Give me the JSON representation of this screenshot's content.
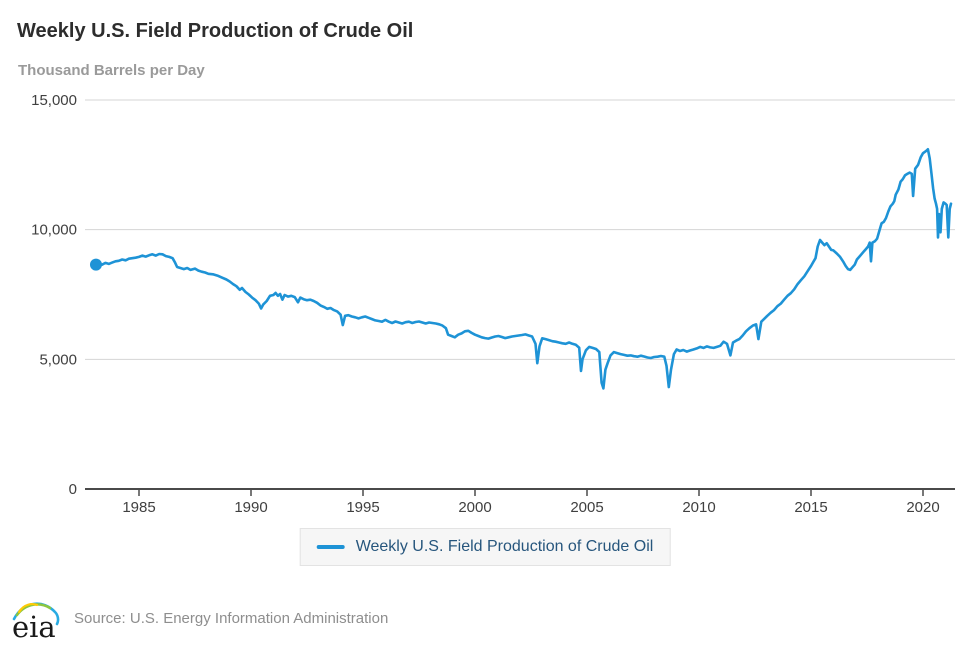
{
  "header": {
    "title": "Weekly U.S. Field Production of Crude Oil",
    "units_label": "Thousand Barrels per Day"
  },
  "legend": {
    "label": "Weekly U.S. Field Production of Crude Oil"
  },
  "footer": {
    "logo_text": "eia",
    "source": "Source: U.S. Energy Information Administration"
  },
  "colors": {
    "series": "#1e93d6",
    "gridline": "#d4d4d4",
    "axis": "#4a4a4a",
    "title": "#2d2d2d",
    "subtitle": "#9a9a9a",
    "tick_label": "#404040",
    "legend_text": "#27567d",
    "legend_bg": "#f6f6f6",
    "legend_border": "#e3e3e3",
    "source_text": "#8e8e8e"
  },
  "chart_data": {
    "type": "line",
    "title": "Weekly U.S. Field Production of Crude Oil",
    "xlabel": "",
    "ylabel": "Thousand Barrels per Day",
    "xlim": [
      1982.6,
      2021.6
    ],
    "ylim": [
      0,
      15000
    ],
    "grid": "horizontal",
    "legend_position": "bottom",
    "x_ticks": [
      1985,
      1990,
      1995,
      2000,
      2005,
      2010,
      2015,
      2020
    ],
    "y_ticks": [
      0,
      5000,
      10000,
      15000
    ],
    "y_tick_labels": [
      "0",
      "5,000",
      "10,000",
      "15,000"
    ],
    "series": [
      {
        "name": "Weekly U.S. Field Production of Crude Oil",
        "color": "#1e93d6",
        "marker_on_first_point": true,
        "points": [
          [
            1983.08,
            8650
          ],
          [
            1983.2,
            8700
          ],
          [
            1983.35,
            8650
          ],
          [
            1983.5,
            8720
          ],
          [
            1983.65,
            8680
          ],
          [
            1983.8,
            8730
          ],
          [
            1983.95,
            8780
          ],
          [
            1984.1,
            8800
          ],
          [
            1984.25,
            8850
          ],
          [
            1984.4,
            8820
          ],
          [
            1984.55,
            8880
          ],
          [
            1984.7,
            8900
          ],
          [
            1984.85,
            8920
          ],
          [
            1985.0,
            8950
          ],
          [
            1985.15,
            9000
          ],
          [
            1985.3,
            8960
          ],
          [
            1985.45,
            9010
          ],
          [
            1985.6,
            9050
          ],
          [
            1985.75,
            9000
          ],
          [
            1985.9,
            9060
          ],
          [
            1986.05,
            9050
          ],
          [
            1986.2,
            8980
          ],
          [
            1986.35,
            8950
          ],
          [
            1986.5,
            8900
          ],
          [
            1986.6,
            8750
          ],
          [
            1986.7,
            8560
          ],
          [
            1986.85,
            8520
          ],
          [
            1987.0,
            8480
          ],
          [
            1987.15,
            8520
          ],
          [
            1987.3,
            8450
          ],
          [
            1987.5,
            8500
          ],
          [
            1987.65,
            8420
          ],
          [
            1987.8,
            8380
          ],
          [
            1987.95,
            8350
          ],
          [
            1988.1,
            8300
          ],
          [
            1988.3,
            8280
          ],
          [
            1988.5,
            8230
          ],
          [
            1988.7,
            8150
          ],
          [
            1988.9,
            8080
          ],
          [
            1989.05,
            8000
          ],
          [
            1989.2,
            7900
          ],
          [
            1989.35,
            7820
          ],
          [
            1989.5,
            7680
          ],
          [
            1989.6,
            7750
          ],
          [
            1989.75,
            7600
          ],
          [
            1989.9,
            7500
          ],
          [
            1990.05,
            7380
          ],
          [
            1990.2,
            7280
          ],
          [
            1990.35,
            7150
          ],
          [
            1990.45,
            6960
          ],
          [
            1990.55,
            7120
          ],
          [
            1990.7,
            7250
          ],
          [
            1990.85,
            7450
          ],
          [
            1991.0,
            7480
          ],
          [
            1991.1,
            7560
          ],
          [
            1991.2,
            7450
          ],
          [
            1991.3,
            7520
          ],
          [
            1991.4,
            7300
          ],
          [
            1991.5,
            7480
          ],
          [
            1991.65,
            7420
          ],
          [
            1991.8,
            7450
          ],
          [
            1991.95,
            7400
          ],
          [
            1992.1,
            7200
          ],
          [
            1992.2,
            7380
          ],
          [
            1992.35,
            7320
          ],
          [
            1992.5,
            7280
          ],
          [
            1992.65,
            7300
          ],
          [
            1992.8,
            7250
          ],
          [
            1992.95,
            7180
          ],
          [
            1993.1,
            7080
          ],
          [
            1993.25,
            7020
          ],
          [
            1993.4,
            6950
          ],
          [
            1993.55,
            6980
          ],
          [
            1993.7,
            6900
          ],
          [
            1993.85,
            6850
          ],
          [
            1994.0,
            6720
          ],
          [
            1994.1,
            6320
          ],
          [
            1994.2,
            6680
          ],
          [
            1994.35,
            6700
          ],
          [
            1994.5,
            6650
          ],
          [
            1994.65,
            6620
          ],
          [
            1994.8,
            6580
          ],
          [
            1994.95,
            6620
          ],
          [
            1995.1,
            6650
          ],
          [
            1995.25,
            6600
          ],
          [
            1995.4,
            6550
          ],
          [
            1995.55,
            6500
          ],
          [
            1995.7,
            6480
          ],
          [
            1995.85,
            6450
          ],
          [
            1996.0,
            6520
          ],
          [
            1996.15,
            6450
          ],
          [
            1996.3,
            6400
          ],
          [
            1996.45,
            6460
          ],
          [
            1996.6,
            6420
          ],
          [
            1996.75,
            6380
          ],
          [
            1996.9,
            6430
          ],
          [
            1997.05,
            6450
          ],
          [
            1997.2,
            6400
          ],
          [
            1997.35,
            6440
          ],
          [
            1997.5,
            6460
          ],
          [
            1997.65,
            6420
          ],
          [
            1997.8,
            6380
          ],
          [
            1997.95,
            6420
          ],
          [
            1998.1,
            6400
          ],
          [
            1998.25,
            6380
          ],
          [
            1998.4,
            6350
          ],
          [
            1998.55,
            6300
          ],
          [
            1998.7,
            6200
          ],
          [
            1998.8,
            5950
          ],
          [
            1998.95,
            5900
          ],
          [
            1999.1,
            5850
          ],
          [
            1999.25,
            5950
          ],
          [
            1999.4,
            6000
          ],
          [
            1999.55,
            6080
          ],
          [
            1999.7,
            6100
          ],
          [
            1999.85,
            6020
          ],
          [
            2000.0,
            5950
          ],
          [
            2000.15,
            5900
          ],
          [
            2000.3,
            5850
          ],
          [
            2000.45,
            5820
          ],
          [
            2000.6,
            5800
          ],
          [
            2000.75,
            5840
          ],
          [
            2000.9,
            5880
          ],
          [
            2001.05,
            5900
          ],
          [
            2001.2,
            5860
          ],
          [
            2001.35,
            5820
          ],
          [
            2001.5,
            5850
          ],
          [
            2001.65,
            5880
          ],
          [
            2001.8,
            5900
          ],
          [
            2001.95,
            5920
          ],
          [
            2002.1,
            5940
          ],
          [
            2002.25,
            5960
          ],
          [
            2002.4,
            5920
          ],
          [
            2002.55,
            5880
          ],
          [
            2002.7,
            5600
          ],
          [
            2002.78,
            4850
          ],
          [
            2002.88,
            5500
          ],
          [
            2003.0,
            5810
          ],
          [
            2003.15,
            5780
          ],
          [
            2003.3,
            5740
          ],
          [
            2003.45,
            5700
          ],
          [
            2003.6,
            5680
          ],
          [
            2003.75,
            5650
          ],
          [
            2003.9,
            5620
          ],
          [
            2004.05,
            5600
          ],
          [
            2004.2,
            5650
          ],
          [
            2004.35,
            5600
          ],
          [
            2004.5,
            5560
          ],
          [
            2004.65,
            5450
          ],
          [
            2004.73,
            4550
          ],
          [
            2004.8,
            5000
          ],
          [
            2004.95,
            5350
          ],
          [
            2005.1,
            5480
          ],
          [
            2005.25,
            5440
          ],
          [
            2005.4,
            5400
          ],
          [
            2005.55,
            5280
          ],
          [
            2005.65,
            4100
          ],
          [
            2005.73,
            3880
          ],
          [
            2005.82,
            4600
          ],
          [
            2005.92,
            4850
          ],
          [
            2006.05,
            5150
          ],
          [
            2006.2,
            5280
          ],
          [
            2006.35,
            5240
          ],
          [
            2006.5,
            5200
          ],
          [
            2006.65,
            5170
          ],
          [
            2006.8,
            5140
          ],
          [
            2006.95,
            5150
          ],
          [
            2007.1,
            5120
          ],
          [
            2007.25,
            5100
          ],
          [
            2007.4,
            5140
          ],
          [
            2007.55,
            5110
          ],
          [
            2007.7,
            5070
          ],
          [
            2007.85,
            5050
          ],
          [
            2008.0,
            5090
          ],
          [
            2008.15,
            5100
          ],
          [
            2008.3,
            5130
          ],
          [
            2008.45,
            5100
          ],
          [
            2008.55,
            4750
          ],
          [
            2008.65,
            3930
          ],
          [
            2008.75,
            4600
          ],
          [
            2008.88,
            5200
          ],
          [
            2009.0,
            5380
          ],
          [
            2009.15,
            5320
          ],
          [
            2009.3,
            5360
          ],
          [
            2009.45,
            5300
          ],
          [
            2009.6,
            5340
          ],
          [
            2009.75,
            5380
          ],
          [
            2009.9,
            5420
          ],
          [
            2010.05,
            5480
          ],
          [
            2010.2,
            5440
          ],
          [
            2010.35,
            5500
          ],
          [
            2010.5,
            5460
          ],
          [
            2010.65,
            5440
          ],
          [
            2010.8,
            5480
          ],
          [
            2010.95,
            5520
          ],
          [
            2011.1,
            5680
          ],
          [
            2011.25,
            5600
          ],
          [
            2011.4,
            5150
          ],
          [
            2011.52,
            5650
          ],
          [
            2011.65,
            5720
          ],
          [
            2011.8,
            5780
          ],
          [
            2011.95,
            5920
          ],
          [
            2012.1,
            6080
          ],
          [
            2012.25,
            6200
          ],
          [
            2012.4,
            6300
          ],
          [
            2012.55,
            6350
          ],
          [
            2012.65,
            5780
          ],
          [
            2012.78,
            6450
          ],
          [
            2012.9,
            6550
          ],
          [
            2013.05,
            6680
          ],
          [
            2013.2,
            6800
          ],
          [
            2013.35,
            6900
          ],
          [
            2013.5,
            7050
          ],
          [
            2013.65,
            7150
          ],
          [
            2013.8,
            7300
          ],
          [
            2013.95,
            7450
          ],
          [
            2014.1,
            7550
          ],
          [
            2014.25,
            7700
          ],
          [
            2014.4,
            7900
          ],
          [
            2014.55,
            8050
          ],
          [
            2014.7,
            8200
          ],
          [
            2014.85,
            8400
          ],
          [
            2015.0,
            8600
          ],
          [
            2015.1,
            8750
          ],
          [
            2015.2,
            8900
          ],
          [
            2015.3,
            9350
          ],
          [
            2015.4,
            9600
          ],
          [
            2015.5,
            9500
          ],
          [
            2015.6,
            9400
          ],
          [
            2015.7,
            9480
          ],
          [
            2015.8,
            9350
          ],
          [
            2015.9,
            9220
          ],
          [
            2016.0,
            9200
          ],
          [
            2016.15,
            9080
          ],
          [
            2016.3,
            8950
          ],
          [
            2016.45,
            8750
          ],
          [
            2016.55,
            8600
          ],
          [
            2016.65,
            8480
          ],
          [
            2016.75,
            8450
          ],
          [
            2016.85,
            8550
          ],
          [
            2016.95,
            8650
          ],
          [
            2017.05,
            8850
          ],
          [
            2017.15,
            8950
          ],
          [
            2017.25,
            9050
          ],
          [
            2017.35,
            9150
          ],
          [
            2017.45,
            9250
          ],
          [
            2017.55,
            9350
          ],
          [
            2017.62,
            9500
          ],
          [
            2017.68,
            8780
          ],
          [
            2017.74,
            9500
          ],
          [
            2017.85,
            9550
          ],
          [
            2017.95,
            9650
          ],
          [
            2018.05,
            9950
          ],
          [
            2018.15,
            10250
          ],
          [
            2018.25,
            10300
          ],
          [
            2018.35,
            10450
          ],
          [
            2018.45,
            10700
          ],
          [
            2018.55,
            10900
          ],
          [
            2018.65,
            11000
          ],
          [
            2018.72,
            11100
          ],
          [
            2018.78,
            11350
          ],
          [
            2018.9,
            11550
          ],
          [
            2019.0,
            11850
          ],
          [
            2019.1,
            11950
          ],
          [
            2019.2,
            12100
          ],
          [
            2019.3,
            12150
          ],
          [
            2019.4,
            12200
          ],
          [
            2019.5,
            12150
          ],
          [
            2019.56,
            11300
          ],
          [
            2019.65,
            12350
          ],
          [
            2019.78,
            12500
          ],
          [
            2019.9,
            12800
          ],
          [
            2020.0,
            12950
          ],
          [
            2020.08,
            13000
          ],
          [
            2020.16,
            13050
          ],
          [
            2020.22,
            13100
          ],
          [
            2020.3,
            12750
          ],
          [
            2020.38,
            12150
          ],
          [
            2020.45,
            11600
          ],
          [
            2020.52,
            11200
          ],
          [
            2020.58,
            11000
          ],
          [
            2020.63,
            10800
          ],
          [
            2020.67,
            9700
          ],
          [
            2020.72,
            10600
          ],
          [
            2020.78,
            9900
          ],
          [
            2020.84,
            10800
          ],
          [
            2020.92,
            11050
          ],
          [
            2021.0,
            11000
          ],
          [
            2021.06,
            10950
          ],
          [
            2021.13,
            9700
          ],
          [
            2021.19,
            10800
          ],
          [
            2021.25,
            11000
          ]
        ]
      }
    ]
  }
}
